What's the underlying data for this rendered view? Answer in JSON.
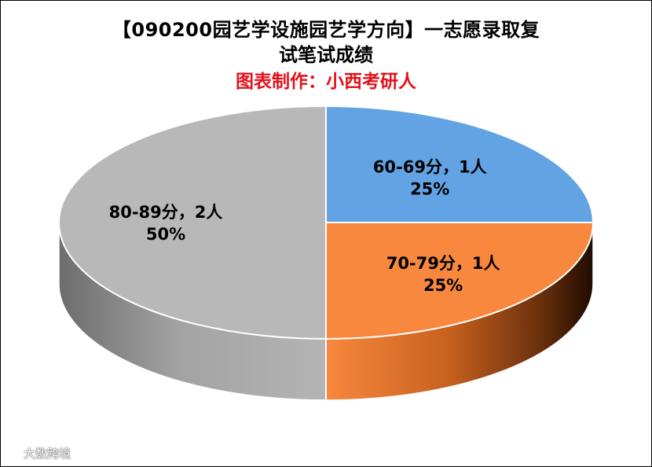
{
  "chart_data": {
    "type": "pie",
    "title_line1": "【090200园艺学设施园艺学方向】一志愿录取复",
    "title_line2": "试笔试成绩",
    "subtitle": "图表制作：小西考研人",
    "categories": [
      "60-69分",
      "70-79分",
      "80-89分"
    ],
    "values": [
      1,
      1,
      2
    ],
    "unit": "人",
    "percent_labels": [
      "25%",
      "25%",
      "50%"
    ],
    "data_labels": [
      "60-69分，1人",
      "70-79分，1人",
      "80-89分，2人"
    ],
    "colors": {
      "60-69分": "#62a3e3",
      "70-79分": "#f7883d",
      "80-89分": "#b8b8b8",
      "subtitle": "#e3101a"
    },
    "style": "3d-pie",
    "legend": "none"
  },
  "watermark": {
    "icon": "logo-icon",
    "text": "大数跨境"
  }
}
